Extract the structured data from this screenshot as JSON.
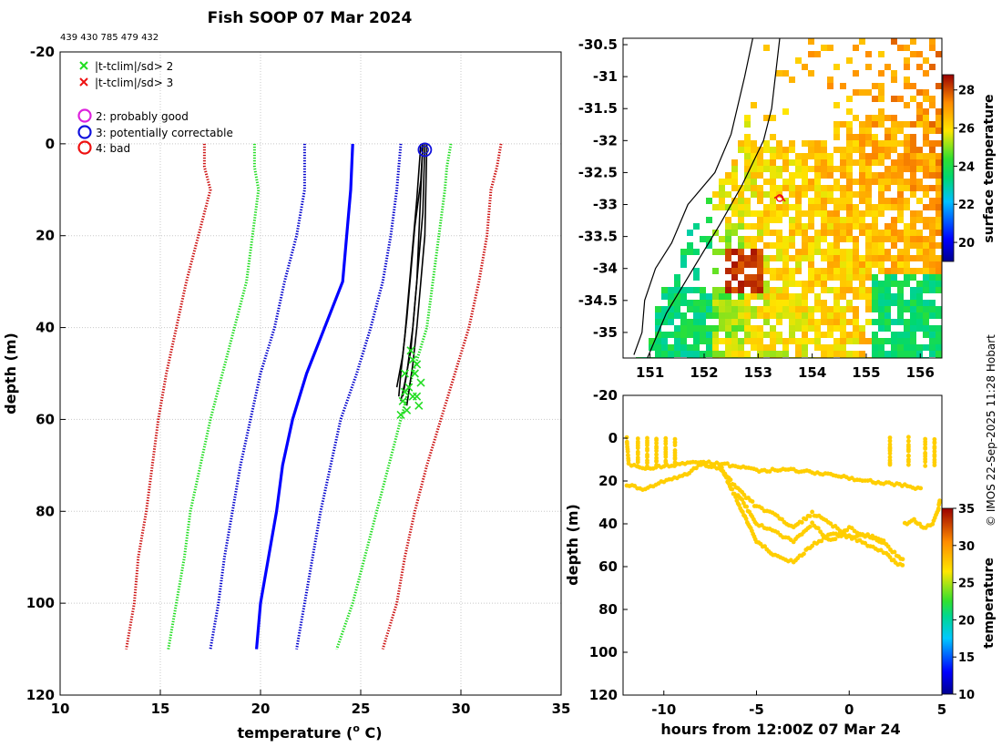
{
  "header": {
    "title": "Fish SOOP 07 Mar 2024",
    "platform_ids": "439 430 785 479 432"
  },
  "credit": "© IMOS 22-Sep-2025 11:28 Hobart",
  "legend": {
    "flags": [
      {
        "label": "|t-tclim|/sd> 2",
        "marker": "x",
        "color": "#22dd22"
      },
      {
        "label": "|t-tclim|/sd> 3",
        "marker": "x",
        "color": "#ee1111"
      }
    ],
    "quality": [
      {
        "label": "2: probably good",
        "marker": "circle",
        "color": "#dd22dd"
      },
      {
        "label": "3: potentially correctable",
        "marker": "circle",
        "color": "#1111dd"
      },
      {
        "label": "4: bad",
        "marker": "circle",
        "color": "#ee1111"
      }
    ]
  },
  "colors": {
    "climatology_mean": "#0000ff",
    "sd2": "#22dd22",
    "sd3": "#cc1111",
    "sd1": "#0000cc",
    "profiles": "#000000",
    "flag_green": "#22dd22"
  },
  "chart_data": [
    {
      "type": "line",
      "name": "temperature profiles",
      "xlabel": "temperature (",
      "xlabel_sup": "o",
      "xlabel_tail": " C)",
      "ylabel": "depth (m)",
      "xlim": [
        10,
        35
      ],
      "ylim": [
        -20,
        120
      ],
      "xticks": [
        10,
        15,
        20,
        25,
        30,
        35
      ],
      "yticks": [
        -20,
        0,
        20,
        40,
        60,
        80,
        100,
        120
      ],
      "y_reversed": true,
      "grid": true,
      "series": [
        {
          "name": "clim mean",
          "style": "solid",
          "color": "#0000ff",
          "points": [
            [
              24.6,
              0
            ],
            [
              24.5,
              10
            ],
            [
              24.3,
              20
            ],
            [
              24.1,
              30
            ],
            [
              23.2,
              40
            ],
            [
              22.3,
              50
            ],
            [
              21.6,
              60
            ],
            [
              21.1,
              70
            ],
            [
              20.8,
              80
            ],
            [
              20.4,
              90
            ],
            [
              20,
              100
            ],
            [
              19.8,
              110
            ]
          ]
        },
        {
          "name": "clim -1sd",
          "style": "dotted",
          "color": "#0000cc",
          "points": [
            [
              22.2,
              0
            ],
            [
              22.2,
              10
            ],
            [
              21.8,
              20
            ],
            [
              21.2,
              30
            ],
            [
              20.7,
              40
            ],
            [
              20,
              50
            ],
            [
              19.5,
              60
            ],
            [
              19,
              70
            ],
            [
              18.6,
              80
            ],
            [
              18.2,
              90
            ],
            [
              17.9,
              100
            ],
            [
              17.5,
              110
            ]
          ]
        },
        {
          "name": "clim +1sd",
          "style": "dotted",
          "color": "#0000cc",
          "points": [
            [
              27,
              0
            ],
            [
              26.8,
              10
            ],
            [
              26.5,
              20
            ],
            [
              26.1,
              30
            ],
            [
              25.5,
              40
            ],
            [
              24.8,
              50
            ],
            [
              24,
              60
            ],
            [
              23.5,
              70
            ],
            [
              23,
              80
            ],
            [
              22.6,
              90
            ],
            [
              22.2,
              100
            ],
            [
              21.8,
              110
            ]
          ]
        },
        {
          "name": "clim -2sd",
          "style": "dotted",
          "color": "#22dd22",
          "points": [
            [
              19.7,
              0
            ],
            [
              19.7,
              5
            ],
            [
              19.9,
              10
            ],
            [
              19.6,
              20
            ],
            [
              19.3,
              30
            ],
            [
              18.7,
              40
            ],
            [
              18.1,
              50
            ],
            [
              17.5,
              60
            ],
            [
              17,
              70
            ],
            [
              16.5,
              80
            ],
            [
              16.2,
              90
            ],
            [
              15.8,
              100
            ],
            [
              15.4,
              110
            ]
          ]
        },
        {
          "name": "clim +2sd",
          "style": "dotted",
          "color": "#22dd22",
          "points": [
            [
              29.5,
              0
            ],
            [
              29.3,
              5
            ],
            [
              29.2,
              10
            ],
            [
              28.9,
              20
            ],
            [
              28.6,
              30
            ],
            [
              28.3,
              40
            ],
            [
              27.6,
              50
            ],
            [
              27,
              60
            ],
            [
              26.4,
              70
            ],
            [
              25.8,
              80
            ],
            [
              25.2,
              90
            ],
            [
              24.6,
              100
            ],
            [
              23.8,
              110
            ]
          ]
        },
        {
          "name": "clim -3sd",
          "style": "dotted",
          "color": "#cc1111",
          "points": [
            [
              17.2,
              0
            ],
            [
              17.2,
              5
            ],
            [
              17.5,
              10
            ],
            [
              16.9,
              20
            ],
            [
              16.3,
              30
            ],
            [
              15.8,
              40
            ],
            [
              15.3,
              50
            ],
            [
              14.9,
              60
            ],
            [
              14.6,
              70
            ],
            [
              14.3,
              80
            ],
            [
              13.9,
              90
            ],
            [
              13.7,
              100
            ],
            [
              13.3,
              110
            ]
          ]
        },
        {
          "name": "clim +3sd",
          "style": "dotted",
          "color": "#cc1111",
          "points": [
            [
              32,
              0
            ],
            [
              31.8,
              5
            ],
            [
              31.5,
              10
            ],
            [
              31.3,
              20
            ],
            [
              30.9,
              30
            ],
            [
              30.4,
              40
            ],
            [
              29.7,
              50
            ],
            [
              29,
              60
            ],
            [
              28.3,
              70
            ],
            [
              27.7,
              80
            ],
            [
              27.2,
              90
            ],
            [
              26.8,
              100
            ],
            [
              26.1,
              110
            ]
          ]
        },
        {
          "name": "profile A",
          "style": "solid",
          "color": "#000000",
          "points": [
            [
              28.1,
              0
            ],
            [
              28,
              10
            ],
            [
              27.9,
              20
            ],
            [
              27.8,
              30
            ],
            [
              27.6,
              40
            ],
            [
              27.3,
              50
            ],
            [
              27.1,
              55
            ]
          ]
        },
        {
          "name": "profile B",
          "style": "solid",
          "color": "#000000",
          "points": [
            [
              28.2,
              0
            ],
            [
              28.1,
              15
            ],
            [
              27.9,
              25
            ],
            [
              27.7,
              35
            ],
            [
              27.5,
              45
            ],
            [
              27.2,
              52
            ],
            [
              27,
              56
            ]
          ]
        },
        {
          "name": "profile C",
          "style": "solid",
          "color": "#000000",
          "points": [
            [
              28,
              0
            ],
            [
              27.8,
              12
            ],
            [
              27.6,
              22
            ],
            [
              27.4,
              32
            ],
            [
              27.2,
              42
            ],
            [
              27,
              50
            ],
            [
              26.9,
              55
            ]
          ]
        },
        {
          "name": "profile D",
          "style": "solid",
          "color": "#000000",
          "points": [
            [
              28.3,
              0
            ],
            [
              28.2,
              20
            ],
            [
              28,
              30
            ],
            [
              27.8,
              40
            ],
            [
              27.6,
              48
            ],
            [
              27.4,
              54
            ],
            [
              27.3,
              57
            ]
          ]
        },
        {
          "name": "profile E",
          "style": "solid",
          "color": "#000000",
          "points": [
            [
              28.1,
              0
            ],
            [
              28,
              8
            ],
            [
              27.7,
              18
            ],
            [
              27.5,
              28
            ],
            [
              27.3,
              38
            ],
            [
              27.1,
              46
            ],
            [
              26.8,
              53
            ]
          ]
        }
      ],
      "flag_points": [
        [
          27.5,
          45
        ],
        [
          27.8,
          48
        ],
        [
          27.2,
          50
        ],
        [
          28,
          52
        ],
        [
          27.4,
          53
        ],
        [
          27.6,
          55
        ],
        [
          27.1,
          56
        ],
        [
          27.9,
          57
        ],
        [
          27.3,
          58
        ],
        [
          27,
          59
        ],
        [
          27.7,
          50
        ],
        [
          27.6,
          47
        ],
        [
          27.2,
          54
        ],
        [
          27.8,
          55
        ]
      ],
      "quality_points": [
        [
          28.2,
          1.3
        ]
      ]
    },
    {
      "type": "heatmap",
      "name": "surface temperature map",
      "xlim": [
        150.5,
        156.4
      ],
      "ylim": [
        -35.4,
        -30.4
      ],
      "xticks": [
        151,
        152,
        153,
        154,
        155,
        156
      ],
      "yticks": [
        -30.5,
        -31,
        -31.5,
        -32,
        -32.5,
        -33,
        -33.5,
        -34,
        -34.5,
        -35
      ],
      "colorbar": {
        "label": "surface temperature",
        "range": [
          19,
          28.8
        ],
        "ticks": [
          20,
          22,
          24,
          26,
          28
        ]
      },
      "coastline": [
        [
          150.7,
          -35.35
        ],
        [
          150.85,
          -35
        ],
        [
          150.9,
          -34.5
        ],
        [
          151.1,
          -34
        ],
        [
          151.4,
          -33.6
        ],
        [
          151.7,
          -33
        ],
        [
          152.2,
          -32.5
        ],
        [
          152.5,
          -31.9
        ],
        [
          152.75,
          -31
        ],
        [
          152.9,
          -30.4
        ]
      ],
      "shelf_line": [
        [
          150.95,
          -35.4
        ],
        [
          151.3,
          -34.7
        ],
        [
          151.8,
          -34
        ],
        [
          152.3,
          -33.3
        ],
        [
          152.7,
          -32.7
        ],
        [
          153.1,
          -32
        ],
        [
          153.25,
          -31.5
        ],
        [
          153.4,
          -30.4
        ]
      ],
      "ship_track": [
        [
          153.3,
          -32.9
        ],
        [
          153.4,
          -32.85
        ],
        [
          153.5,
          -32.95
        ]
      ]
    },
    {
      "type": "scatter",
      "name": "depth vs time",
      "xlabel": "hours from 12:00Z 07 Mar 24",
      "ylabel": "depth (m)",
      "xlim": [
        -12.2,
        5
      ],
      "ylim": [
        -20,
        120
      ],
      "xticks": [
        -10,
        -5,
        0,
        5
      ],
      "yticks": [
        -20,
        0,
        20,
        40,
        60,
        80,
        100,
        120
      ],
      "y_reversed": true,
      "colorbar": {
        "label": "temperature",
        "range": [
          10,
          35
        ],
        "ticks": [
          10,
          15,
          20,
          25,
          30,
          35
        ]
      },
      "series": [
        {
          "name": "track 1",
          "points": [
            [
              -12,
              0
            ],
            [
              -11.9,
              12
            ],
            [
              -11,
              14
            ],
            [
              -10,
              13
            ],
            [
              -9,
              12
            ],
            [
              -8,
              11
            ],
            [
              -6,
              13
            ],
            [
              -5,
              15
            ],
            [
              -3,
              15
            ],
            [
              -1,
              17
            ],
            [
              1,
              20
            ],
            [
              3,
              22
            ],
            [
              4,
              24
            ]
          ]
        },
        {
          "name": "track 2",
          "points": [
            [
              -12,
              22
            ],
            [
              -11,
              24
            ],
            [
              -10,
              20
            ],
            [
              -9,
              18
            ],
            [
              -8,
              12
            ],
            [
              -7,
              14
            ],
            [
              -6,
              24
            ],
            [
              -5,
              32
            ],
            [
              -4,
              36
            ],
            [
              -3,
              42
            ],
            [
              -2,
              35
            ],
            [
              -1,
              40
            ],
            [
              0,
              46
            ],
            [
              1,
              50
            ],
            [
              2,
              54
            ],
            [
              2.5,
              58
            ],
            [
              3,
              60
            ]
          ]
        },
        {
          "name": "track 3",
          "points": [
            [
              -7,
              12
            ],
            [
              -6,
              30
            ],
            [
              -5,
              48
            ],
            [
              -4,
              55
            ],
            [
              -3,
              58
            ],
            [
              -2,
              50
            ],
            [
              -1,
              45
            ],
            [
              0,
              46
            ],
            [
              1,
              45
            ],
            [
              2,
              50
            ],
            [
              3,
              58
            ]
          ]
        },
        {
          "name": "track 4",
          "points": [
            [
              -6,
              26
            ],
            [
              -5,
              40
            ],
            [
              -4,
              44
            ],
            [
              -3,
              48
            ],
            [
              -2,
              40
            ],
            [
              -1,
              48
            ],
            [
              0,
              42
            ],
            [
              1,
              46
            ],
            [
              2,
              48
            ]
          ]
        },
        {
          "name": "track 5",
          "points": [
            [
              3,
              40
            ],
            [
              3.5,
              38
            ],
            [
              4,
              42
            ],
            [
              4.5,
              40
            ],
            [
              4.8,
              34
            ],
            [
              4.9,
              28
            ]
          ]
        }
      ],
      "spikes_x": [
        -11.4,
        -10.9,
        -10.4,
        -9.9,
        -9.4,
        2.2,
        3.2,
        4.1,
        4.6
      ],
      "point_temperature": 28.5
    }
  ]
}
